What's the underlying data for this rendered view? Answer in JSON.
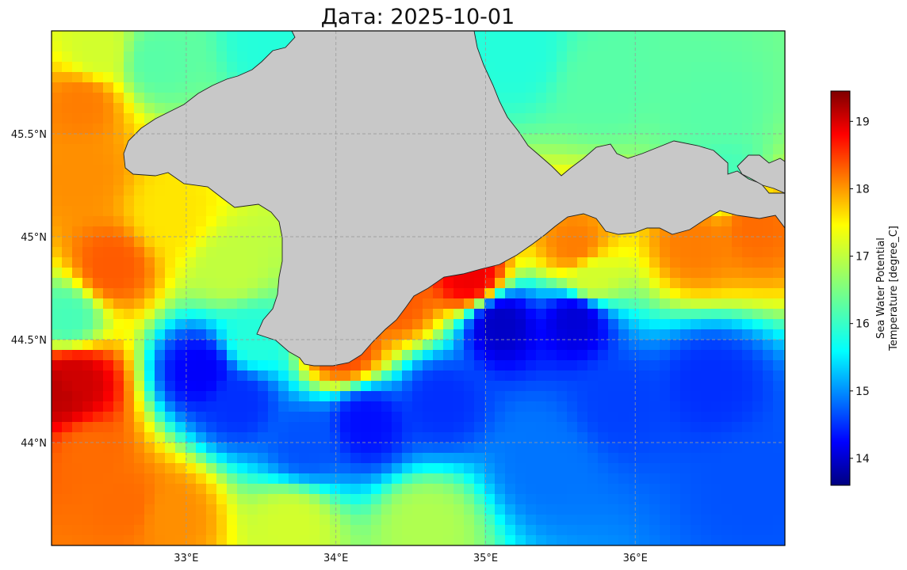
{
  "chart_data": {
    "type": "heatmap",
    "title": "Дата: 2025-10-01",
    "projection": "plate-carree",
    "lon_range": [
      32.1,
      37.0
    ],
    "lat_range": [
      43.5,
      46.0
    ],
    "x_ticks": [
      {
        "value": 33,
        "label": "33°E"
      },
      {
        "value": 34,
        "label": "34°E"
      },
      {
        "value": 35,
        "label": "35°E"
      },
      {
        "value": 36,
        "label": "36°E"
      }
    ],
    "y_ticks": [
      {
        "value": 45.5,
        "label": "45.5°N"
      },
      {
        "value": 45.0,
        "label": "45°N"
      },
      {
        "value": 44.5,
        "label": "44.5°N"
      },
      {
        "value": 44.0,
        "label": "44°N"
      }
    ],
    "grid": true,
    "land_color": "#c8c8c8",
    "colormap": "jet",
    "colorbar": {
      "label_line1": "Sea Water Potential",
      "label_line2": "Temperature [degree_C]",
      "range": [
        13.6,
        19.45
      ],
      "ticks": [
        14,
        15,
        16,
        17,
        18,
        19
      ],
      "position": "right"
    },
    "temperature_features": [
      {
        "lon": 32.25,
        "lat": 44.3,
        "value": 19.0
      },
      {
        "lon": 32.15,
        "lat": 44.25,
        "value": 19.1
      },
      {
        "lon": 32.3,
        "lat": 45.65,
        "value": 18.0
      },
      {
        "lon": 32.5,
        "lat": 44.85,
        "value": 18.2
      },
      {
        "lon": 32.3,
        "lat": 45.3,
        "value": 17.9
      },
      {
        "lon": 32.6,
        "lat": 43.7,
        "value": 18.1
      },
      {
        "lon": 32.9,
        "lat": 43.65,
        "value": 17.9
      },
      {
        "lon": 32.35,
        "lat": 43.95,
        "value": 18.1
      },
      {
        "lon": 33.1,
        "lat": 44.35,
        "value": 14.3
      },
      {
        "lon": 33.35,
        "lat": 44.2,
        "value": 14.6
      },
      {
        "lon": 33.8,
        "lat": 44.0,
        "value": 14.8
      },
      {
        "lon": 34.2,
        "lat": 44.1,
        "value": 14.4
      },
      {
        "lon": 34.7,
        "lat": 44.2,
        "value": 14.6
      },
      {
        "lon": 35.1,
        "lat": 44.58,
        "value": 14.0
      },
      {
        "lon": 35.6,
        "lat": 44.6,
        "value": 14.1
      },
      {
        "lon": 35.9,
        "lat": 44.2,
        "value": 14.7
      },
      {
        "lon": 36.5,
        "lat": 44.3,
        "value": 14.6
      },
      {
        "lon": 36.8,
        "lat": 43.8,
        "value": 14.8
      },
      {
        "lon": 35.4,
        "lat": 43.9,
        "value": 15.0
      },
      {
        "lon": 34.6,
        "lat": 43.6,
        "value": 16.8
      },
      {
        "lon": 33.7,
        "lat": 43.6,
        "value": 17.0
      },
      {
        "lon": 34.9,
        "lat": 44.8,
        "value": 18.8
      },
      {
        "lon": 34.4,
        "lat": 44.7,
        "value": 18.2
      },
      {
        "lon": 34.05,
        "lat": 44.45,
        "value": 18.3
      },
      {
        "lon": 35.6,
        "lat": 44.95,
        "value": 18.0
      },
      {
        "lon": 36.4,
        "lat": 44.97,
        "value": 18.0
      },
      {
        "lon": 36.8,
        "lat": 45.05,
        "value": 18.1
      },
      {
        "lon": 35.7,
        "lat": 44.8,
        "value": 17.0
      },
      {
        "lon": 32.9,
        "lat": 45.1,
        "value": 17.4
      },
      {
        "lon": 33.3,
        "lat": 44.85,
        "value": 16.9
      },
      {
        "lon": 33.45,
        "lat": 44.5,
        "value": 16.0
      },
      {
        "lon": 35.8,
        "lat": 45.75,
        "value": 16.3
      },
      {
        "lon": 36.5,
        "lat": 45.6,
        "value": 16.3
      },
      {
        "lon": 35.2,
        "lat": 45.9,
        "value": 16.0
      },
      {
        "lon": 32.4,
        "lat": 45.9,
        "value": 17.0
      },
      {
        "lon": 32.8,
        "lat": 45.85,
        "value": 16.3
      },
      {
        "lon": 33.6,
        "lat": 45.95,
        "value": 16.0
      },
      {
        "lon": 36.6,
        "lat": 45.3,
        "value": 16.2
      },
      {
        "lon": 32.2,
        "lat": 44.6,
        "value": 16.2
      }
    ]
  }
}
